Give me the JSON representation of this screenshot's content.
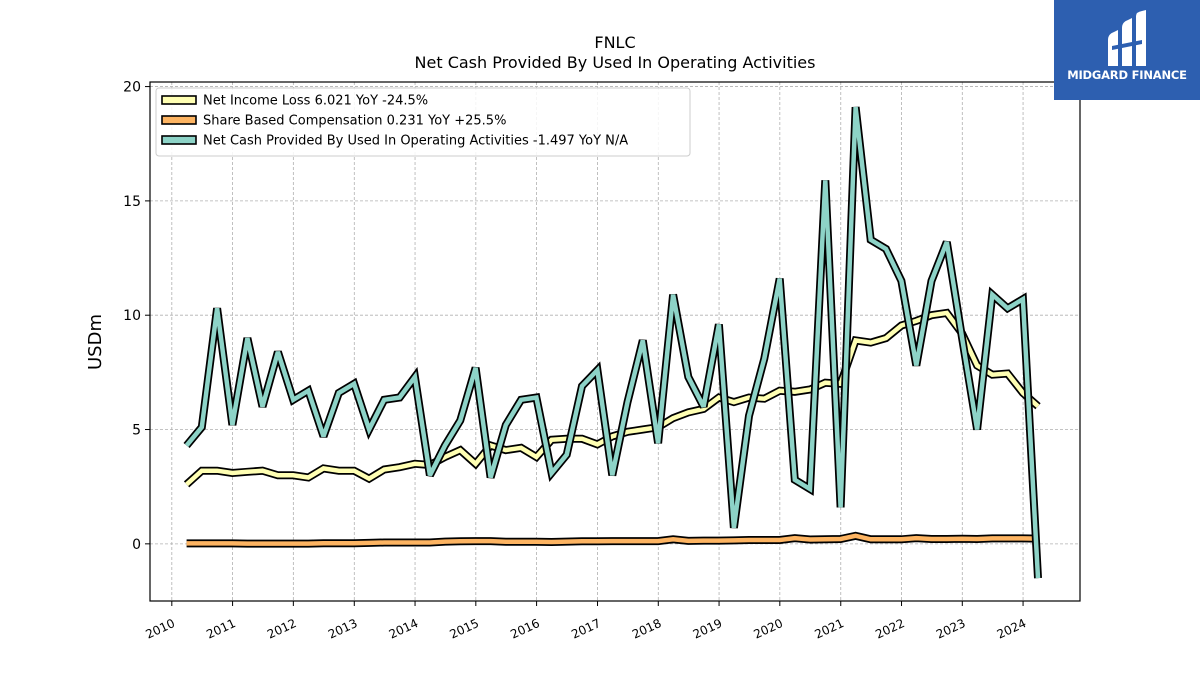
{
  "chart_data": {
    "type": "line",
    "title": "FNLC",
    "subtitle": "Net Cash Provided By Used In Operating Activities",
    "xlabel": "",
    "ylabel": "USDm",
    "ylim": [
      -2.5,
      20.2
    ],
    "xlim": [
      "2009-08-23",
      "2024-12-08"
    ],
    "yticks": [
      0,
      5,
      10,
      15,
      20
    ],
    "xticks": [
      "2010",
      "2011",
      "2012",
      "2013",
      "2014",
      "2015",
      "2016",
      "2017",
      "2018",
      "2019",
      "2020",
      "2021",
      "2022",
      "2023",
      "2024"
    ],
    "grid": true,
    "legend_position": "top-left",
    "series": [
      {
        "name": "Net Income Loss  6.021 YoY -24.5%",
        "color": "#ffffb3",
        "x": [
          "2010-03-31",
          "2010-06-30",
          "2010-09-30",
          "2010-12-31",
          "2011-03-31",
          "2011-06-30",
          "2011-09-30",
          "2011-12-31",
          "2012-03-31",
          "2012-06-30",
          "2012-09-30",
          "2012-12-31",
          "2013-03-31",
          "2013-06-30",
          "2013-09-30",
          "2013-12-31",
          "2014-03-31",
          "2014-06-30",
          "2014-09-30",
          "2014-12-31",
          "2015-03-31",
          "2015-06-30",
          "2015-09-30",
          "2015-12-31",
          "2016-03-31",
          "2016-06-30",
          "2016-09-30",
          "2016-12-31",
          "2017-03-31",
          "2017-06-30",
          "2017-09-30",
          "2017-12-31",
          "2018-03-31",
          "2018-06-30",
          "2018-09-30",
          "2018-12-31",
          "2019-03-31",
          "2019-06-30",
          "2019-09-30",
          "2019-12-31",
          "2020-03-31",
          "2020-06-30",
          "2020-09-30",
          "2020-12-31",
          "2021-03-31",
          "2021-06-30",
          "2021-09-30",
          "2021-12-31",
          "2022-03-31",
          "2022-06-30",
          "2022-09-30",
          "2022-12-31",
          "2023-03-31",
          "2023-06-30",
          "2023-09-30",
          "2023-12-31",
          "2024-03-31"
        ],
        "values": [
          2.6,
          3.2,
          3.2,
          3.1,
          3.15,
          3.2,
          3.0,
          3.0,
          2.9,
          3.3,
          3.2,
          3.2,
          2.85,
          3.25,
          3.35,
          3.5,
          3.45,
          3.8,
          4.1,
          3.5,
          4.3,
          4.1,
          4.2,
          3.8,
          4.55,
          4.6,
          4.6,
          4.35,
          4.7,
          4.9,
          5.0,
          5.1,
          5.5,
          5.75,
          5.9,
          6.4,
          6.2,
          6.4,
          6.35,
          6.7,
          6.65,
          6.75,
          7.05,
          7.0,
          8.9,
          8.8,
          9.0,
          9.55,
          9.75,
          10.0,
          10.1,
          9.2,
          7.8,
          7.4,
          7.45,
          6.6,
          6.02
        ]
      },
      {
        "name": "Share Based Compensation  0.231 YoY +25.5%",
        "color": "#fdb462",
        "x": [
          "2010-03-31",
          "2010-06-30",
          "2010-09-30",
          "2010-12-31",
          "2011-03-31",
          "2011-06-30",
          "2011-09-30",
          "2011-12-31",
          "2012-03-31",
          "2012-06-30",
          "2012-09-30",
          "2012-12-31",
          "2013-03-31",
          "2013-06-30",
          "2013-09-30",
          "2013-12-31",
          "2014-03-31",
          "2014-06-30",
          "2014-09-30",
          "2014-12-31",
          "2015-03-31",
          "2015-06-30",
          "2015-09-30",
          "2015-12-31",
          "2016-03-31",
          "2016-06-30",
          "2016-09-30",
          "2016-12-31",
          "2017-03-31",
          "2017-06-30",
          "2017-09-30",
          "2017-12-31",
          "2018-03-31",
          "2018-06-30",
          "2018-09-30",
          "2018-12-31",
          "2019-03-31",
          "2019-06-30",
          "2019-09-30",
          "2019-12-31",
          "2020-03-31",
          "2020-06-30",
          "2020-09-30",
          "2020-12-31",
          "2021-03-31",
          "2021-06-30",
          "2021-09-30",
          "2021-12-31",
          "2022-03-31",
          "2022-06-30",
          "2022-09-30",
          "2022-12-31",
          "2023-03-31",
          "2023-06-30",
          "2023-09-30",
          "2023-12-31",
          "2024-03-31"
        ],
        "values": [
          0.02,
          0.02,
          0.02,
          0.02,
          0.01,
          0.01,
          0.01,
          0.01,
          0.01,
          0.03,
          0.03,
          0.03,
          0.04,
          0.06,
          0.06,
          0.06,
          0.06,
          0.1,
          0.11,
          0.12,
          0.12,
          0.09,
          0.09,
          0.09,
          0.08,
          0.1,
          0.11,
          0.11,
          0.12,
          0.12,
          0.12,
          0.12,
          0.2,
          0.13,
          0.14,
          0.14,
          0.15,
          0.17,
          0.17,
          0.17,
          0.25,
          0.19,
          0.2,
          0.21,
          0.35,
          0.2,
          0.2,
          0.2,
          0.25,
          0.21,
          0.21,
          0.22,
          0.21,
          0.24,
          0.24,
          0.24,
          0.23
        ]
      },
      {
        "name": "Net Cash Provided By Used In Operating Activities  -1.497 YoY N/A",
        "color": "#8dd3c7",
        "x": [
          "2010-03-31",
          "2010-06-30",
          "2010-09-30",
          "2010-12-31",
          "2011-03-31",
          "2011-06-30",
          "2011-09-30",
          "2011-12-31",
          "2012-03-31",
          "2012-06-30",
          "2012-09-30",
          "2012-12-31",
          "2013-03-31",
          "2013-06-30",
          "2013-09-30",
          "2013-12-31",
          "2014-03-31",
          "2014-06-30",
          "2014-09-30",
          "2014-12-31",
          "2015-03-31",
          "2015-06-30",
          "2015-09-30",
          "2015-12-31",
          "2016-03-31",
          "2016-06-30",
          "2016-09-30",
          "2016-12-31",
          "2017-03-31",
          "2017-06-30",
          "2017-09-30",
          "2017-12-31",
          "2018-03-31",
          "2018-06-30",
          "2018-09-30",
          "2018-12-31",
          "2019-03-31",
          "2019-06-30",
          "2019-09-30",
          "2019-12-31",
          "2020-03-31",
          "2020-06-30",
          "2020-09-30",
          "2020-12-31",
          "2021-03-31",
          "2021-06-30",
          "2021-09-30",
          "2021-12-31",
          "2022-03-31",
          "2022-06-30",
          "2022-09-30",
          "2022-12-31",
          "2023-03-31",
          "2023-06-30",
          "2023-09-30",
          "2023-12-31",
          "2024-03-31"
        ],
        "values": [
          4.3,
          5.1,
          10.3,
          5.2,
          9.0,
          6.0,
          8.4,
          6.3,
          6.7,
          4.7,
          6.6,
          7.0,
          5.0,
          6.3,
          6.4,
          7.3,
          3.0,
          4.3,
          5.4,
          7.7,
          2.9,
          5.2,
          6.3,
          6.4,
          3.1,
          3.9,
          6.9,
          7.6,
          3.0,
          6.2,
          8.9,
          4.4,
          10.9,
          7.3,
          6.0,
          9.6,
          0.7,
          5.6,
          8.1,
          11.6,
          2.8,
          2.4,
          15.9,
          1.6,
          19.1,
          13.3,
          12.9,
          11.5,
          7.8,
          11.5,
          13.2,
          9.0,
          5.0,
          10.9,
          10.3,
          10.7,
          -1.5
        ]
      }
    ]
  },
  "logo": {
    "text": "MIDGARD FINANCE"
  }
}
